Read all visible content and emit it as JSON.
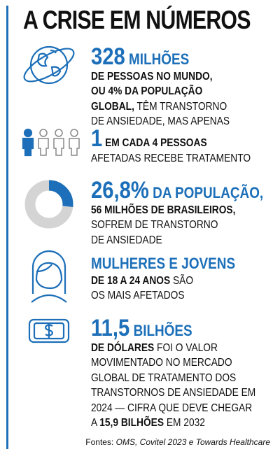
{
  "title": "A CRISE EM NÚMEROS",
  "items": [
    {
      "lines": [
        [
          {
            "text": "328",
            "style": "big"
          },
          {
            "text": " MILHÕES",
            "style": "blue"
          }
        ],
        [
          {
            "text": "DE PESSOAS NO MUNDO,",
            "style": "bold"
          }
        ],
        [
          {
            "text": "OU 4% DA POPULAÇÃO",
            "style": "bold"
          }
        ],
        [
          {
            "text": "GLOBAL,",
            "style": "bold"
          },
          {
            "text": " TÊM TRANSTORNO",
            "style": "reg"
          }
        ],
        [
          {
            "text": "DE ANSIEDADE, MAS APENAS",
            "style": "reg"
          }
        ]
      ]
    },
    {
      "lines": [
        [
          {
            "text": "1",
            "style": "big"
          },
          {
            "text": " EM CADA 4 PESSOAS",
            "style": "bold"
          }
        ],
        [
          {
            "text": "AFETADAS RECEBE TRATAMENTO",
            "style": "reg"
          }
        ]
      ]
    },
    {
      "lead": {
        "value": 26.8,
        "label": "26,8%"
      },
      "lines": [
        [
          {
            "text": " DA POPULAÇÃO,",
            "style": "blue"
          }
        ],
        [
          {
            "text": "56 MILHÕES DE BRASILEIROS,",
            "style": "bold"
          }
        ],
        [
          {
            "text": "SOFREM DE TRANSTORNO",
            "style": "reg"
          }
        ],
        [
          {
            "text": "DE ANSIEDADE",
            "style": "reg"
          }
        ]
      ]
    },
    {
      "lines": [
        [
          {
            "text": "MULHERES E JOVENS",
            "style": "blue"
          }
        ],
        [
          {
            "text": "DE 18 A 24 ANOS",
            "style": "bold"
          },
          {
            "text": " SÃO",
            "style": "reg"
          }
        ],
        [
          {
            "text": "OS MAIS AFETADOS",
            "style": "reg"
          }
        ]
      ]
    },
    {
      "lines": [
        [
          {
            "text": "11,5",
            "style": "big"
          },
          {
            "text": " BILHÕES",
            "style": "blue"
          }
        ],
        [
          {
            "text": "DE DÓLARES",
            "style": "bold"
          },
          {
            "text": " FOI O VALOR",
            "style": "reg"
          }
        ],
        [
          {
            "text": "MOVIMENTADO NO MERCADO",
            "style": "reg"
          }
        ],
        [
          {
            "text": "GLOBAL DE TRATAMENTO DOS",
            "style": "reg"
          }
        ],
        [
          {
            "text": "TRANSTORNOS DE ANSIEDADE EM",
            "style": "reg"
          }
        ],
        [
          {
            "text": "2024 — CIFRA QUE DEVE CHEGAR",
            "style": "reg"
          }
        ],
        [
          {
            "text": "A ",
            "style": "reg"
          },
          {
            "text": "15,9 BILHÕES",
            "style": "bold"
          },
          {
            "text": " EM 2032",
            "style": "reg"
          }
        ]
      ]
    }
  ],
  "source": {
    "prefix": "Fontes:",
    "text": "OMS, Covitel 2023 e Towards Healthcare"
  }
}
